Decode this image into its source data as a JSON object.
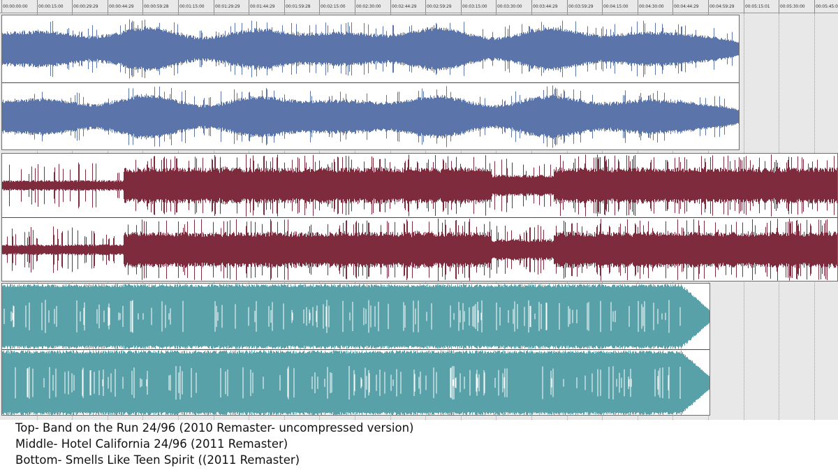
{
  "timeline": {
    "ticks": [
      "00:00:00:00",
      "00:00:15:00",
      "00:00:29:29",
      "00:00:44:29",
      "00:00:59:28",
      "00:01:15:00",
      "00:01:29:29",
      "00:01:44:29",
      "00:01:59:28",
      "00:02:15:00",
      "00:02:30:00",
      "00:02:44:29",
      "00:02:59:29",
      "00:03:15:00",
      "00:03:30:00",
      "00:03:44:29",
      "00:03:59:29",
      "00:04:15:00",
      "00:04:30:00",
      "00:04:44:29",
      "00:04:59:29",
      "00:05:15:01",
      "00:05:30:00",
      "00:05:45:0"
    ]
  },
  "tracks": [
    {
      "name": "Band on the Run 24/96 (2010 Remaster- uncompressed version)",
      "color": "#5b74aa",
      "channels": 2,
      "style": "moderate",
      "duration": "00:04:59:29"
    },
    {
      "name": "Hotel California 24/96 (2011 Remaster)",
      "color": "#7e2c3d",
      "channels": 2,
      "style": "dynamic",
      "duration": "beyond 00:05:45"
    },
    {
      "name": "Smells Like Teen Spirit ((2011 Remaster)",
      "color": "#59a1a9",
      "channels": 2,
      "style": "brickwall",
      "duration": "00:04:59:29"
    }
  ],
  "captions": [
    "Top- Band on the Run 24/96 (2010 Remaster- uncompressed version)",
    "Middle- Hotel California 24/96 (2011 Remaster)",
    "Bottom- Smells Like Teen Spirit ((2011 Remaster)"
  ]
}
